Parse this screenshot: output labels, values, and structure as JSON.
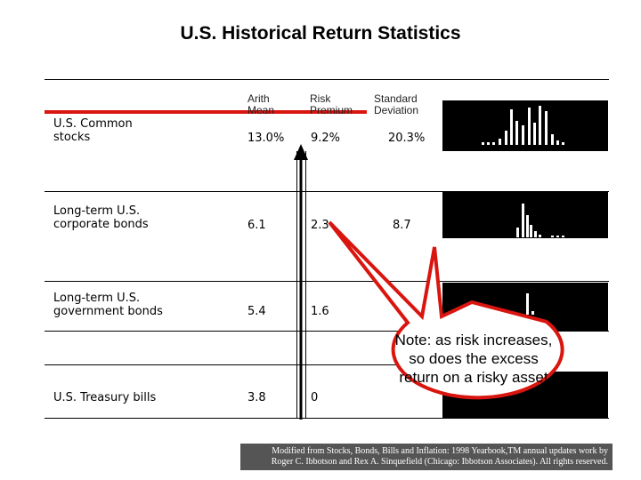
{
  "title": "U.S. Historical Return Statistics",
  "columns": {
    "arith_mean": "Arith\nMean",
    "risk_premium": "Risk\nPremium",
    "std_dev": "Standard\nDeviation"
  },
  "rows": [
    {
      "label": "U.S. Common\nstocks",
      "mean": "13.0%",
      "premium": "9.2%",
      "sd": "20.3%"
    },
    {
      "label": "Long-term U.S.\ncorporate bonds",
      "mean": "6.1",
      "premium": "2.3",
      "sd": "8.7"
    },
    {
      "label": "Long-term U.S.\ngovernment bonds",
      "mean": "5.4",
      "premium": "1.6",
      "sd": ""
    },
    {
      "label": "U.S. Treasury bills",
      "mean": "3.8",
      "premium": "0",
      "sd": ""
    }
  ],
  "callout": "Note: as risk increases, so does the excess return on a risky asset",
  "footer": {
    "line1": "Modified from Stocks, Bonds, Bills and Inflation: 1998 Yearbook,TM annual updates work by",
    "line2": "Roger C. Ibbotson and Rex A. Sinquefield (Chicago: Ibbotson Associates). All rights reserved."
  },
  "colors": {
    "accent_bar": "#d9150f",
    "histogram_bg": "#000000",
    "footer_bg": "#555555"
  }
}
